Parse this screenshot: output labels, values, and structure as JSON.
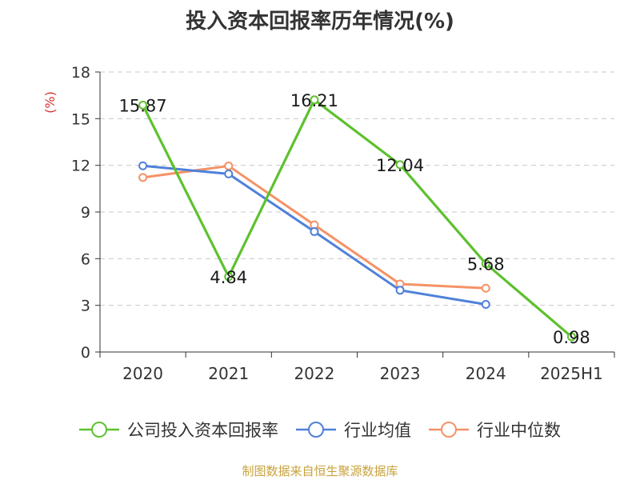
{
  "chart_data": {
    "type": "line",
    "title": "投入资本回报率历年情况(%)",
    "ylabel": "(%)",
    "xlabel": "",
    "categories": [
      "2020",
      "2021",
      "2022",
      "2023",
      "2024",
      "2025H1"
    ],
    "ylim": [
      0,
      18
    ],
    "yticks": [
      0,
      3,
      6,
      9,
      12,
      15,
      18
    ],
    "grid": "horizontal-dashed",
    "legend_position": "bottom",
    "series": [
      {
        "name": "公司投入资本回报率",
        "color": "#5dc12e",
        "values": [
          15.87,
          4.84,
          16.21,
          12.04,
          5.68,
          0.98
        ],
        "data_labels": [
          "15.87",
          "4.84",
          "16.21",
          "12.04",
          "5.68",
          "0.98"
        ]
      },
      {
        "name": "行业均值",
        "color": "#4f81d9",
        "values": [
          11.97,
          11.45,
          7.74,
          3.97,
          3.06,
          null
        ]
      },
      {
        "name": "行业中位数",
        "color": "#f59266",
        "values": [
          11.22,
          11.96,
          8.17,
          4.37,
          4.1,
          null
        ]
      }
    ]
  },
  "source": {
    "text": "制图数据来自恒生聚源数据库",
    "color": "#c8a23c"
  }
}
